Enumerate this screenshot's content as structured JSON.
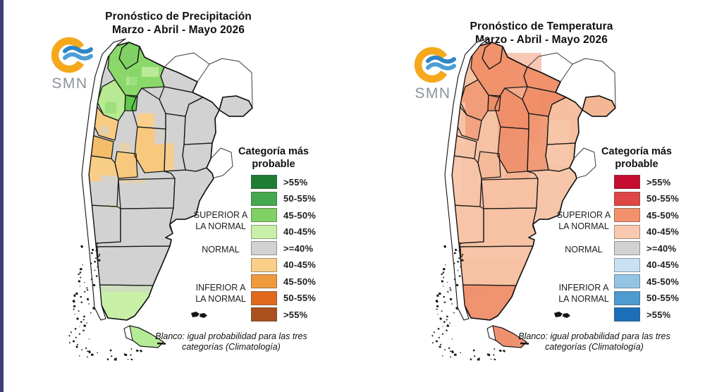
{
  "page": {
    "left_bar_color": "#3e3d7a",
    "logo": {
      "arc_color": "#F6A81C",
      "wave1_color": "#2E86C6",
      "wave2_color": "#4C9FD6",
      "text_color": "#8d929b"
    }
  },
  "panes": [
    {
      "id": "precipitation",
      "title_line1": "Pronóstico de Precipitación",
      "title_line2": "Marzo - Abril - Mayo 2026",
      "logo_text": "SMN",
      "legend": {
        "title": "Categoría más\nprobable",
        "group_labels": [
          {
            "text": "SUPERIOR A\nLA NORMAL"
          },
          {
            "text": "NORMAL"
          },
          {
            "text": "INFERIOR A\nLA NORMAL"
          }
        ],
        "entries": [
          {
            "label": ">55%",
            "color": "#1e7d32"
          },
          {
            "label": "50-55%",
            "color": "#43a84e"
          },
          {
            "label": "45-50%",
            "color": "#7fd163"
          },
          {
            "label": "40-45%",
            "color": "#c9f0a8"
          },
          {
            "label": ">=40%",
            "color": "#d2d2d2"
          },
          {
            "label": "40-45%",
            "color": "#fbcf87"
          },
          {
            "label": "45-50%",
            "color": "#ee9a3d"
          },
          {
            "label": "50-55%",
            "color": "#df6a1f"
          },
          {
            "label": ">55%",
            "color": "#a8511d"
          }
        ]
      },
      "note": "Blanco: igual probabilidad para las tres\ncategorías (Climatología)",
      "region_fills": {
        "base": "#d2d2d2",
        "jujuy": "#7fd163",
        "salta": "#8bd86a",
        "tucuman": "#5fc94a",
        "catamarca": "#b7ea92",
        "santiago": "#d2d2d2",
        "formosa": "#d2d2d2",
        "chaco": "#d2d2d2",
        "misiones": "#d2d2d2",
        "corrientes": "#d2d2d2",
        "santa_fe": "#d2d2d2",
        "entre_rios": "#d2d2d2",
        "cordoba": "#f7c87e",
        "la_rioja": "#f9cb82",
        "san_juan": "#f4bd6c",
        "san_luis": "#f7c87e",
        "mendoza": "#f8cd85",
        "la_pampa": "#d2d2d2",
        "buenos_aires": "#d2d2d2",
        "neuquen": "#d2d2d2",
        "rio_negro": "#d2d2d2",
        "chubut": "#d2d2d2",
        "santa_cruz": "#c7f0a6",
        "tdf": "#b4ec96"
      }
    },
    {
      "id": "temperature",
      "title_line1": "Pronóstico de Temperatura",
      "title_line2": "Marzo - Abril - Mayo 2026",
      "logo_text": "SMN",
      "legend": {
        "title": "Categoría más\nprobable",
        "group_labels": [
          {
            "text": "SUPERIOR A\nLA NORMAL"
          },
          {
            "text": "NORMAL"
          },
          {
            "text": "INFERIOR A\nLA NORMAL"
          }
        ],
        "entries": [
          {
            "label": ">55%",
            "color": "#c60c30"
          },
          {
            "label": "50-55%",
            "color": "#e04545"
          },
          {
            "label": "45-50%",
            "color": "#f2916c"
          },
          {
            "label": "40-45%",
            "color": "#f8c9ae"
          },
          {
            "label": ">=40%",
            "color": "#d2d2d2"
          },
          {
            "label": "40-45%",
            "color": "#c9e2f3"
          },
          {
            "label": "45-50%",
            "color": "#94c4e4"
          },
          {
            "label": "50-55%",
            "color": "#4d9bd1"
          },
          {
            "label": ">55%",
            "color": "#1b6fb9"
          }
        ]
      },
      "note": "Blanco: igual probabilidad para las tres\ncategorías (Climatología)",
      "region_fills": {
        "base": "#f6c2a4",
        "jujuy": "#f0926c",
        "salta": "#f0926c",
        "tucuman": "#ee8d66",
        "catamarca": "#f29d79",
        "santiago": "#ee8e68",
        "formosa": "#f0926c",
        "chaco": "#ee8e68",
        "misiones": "#f4b795",
        "corrientes": "#f6c0a0",
        "santa_fe": "#f19c77",
        "entre_rios": "#f7c3a5",
        "cordoba": "#ee9270",
        "la_rioja": "#f2a381",
        "san_juan": "#f7c3a5",
        "san_luis": "#f5ba99",
        "mendoza": "#f7c4a7",
        "la_pampa": "#f6c2a3",
        "buenos_aires": "#f7c6aa",
        "neuquen": "#f7c4a7",
        "rio_negro": "#f6c2a3",
        "chubut": "#f6c2a3",
        "santa_cruz": "#ef9370",
        "tdf": "#ef9170"
      }
    }
  ]
}
